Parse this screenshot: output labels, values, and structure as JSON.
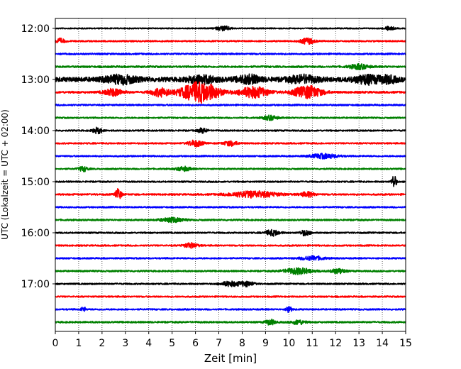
{
  "chart_data": {
    "type": "line",
    "title": "",
    "xlabel": "Zeit  [min]",
    "ylabel": "UTC (Lokalzeit = UTC + 02:00)",
    "xlim": [
      0,
      15
    ],
    "x_ticks": [
      "0",
      "1",
      "2",
      "3",
      "4",
      "5",
      "6",
      "7",
      "8",
      "9",
      "10",
      "11",
      "12",
      "13",
      "14",
      "15"
    ],
    "y_tick_labels": [
      "12:00",
      "13:00",
      "14:00",
      "15:00",
      "16:00",
      "17:00"
    ],
    "grid": "vertical dotted",
    "legend": "none",
    "trace_interval_minutes": 15,
    "first_trace": "12:00",
    "colors": [
      "#000000",
      "#ff0000",
      "#0000ff",
      "#008000"
    ],
    "series": [
      {
        "start": "12:00",
        "color": "#000000",
        "level": 0.35,
        "bursts": [
          [
            7.2,
            0.3,
            1.4
          ],
          [
            14.3,
            0.2,
            1.2
          ]
        ]
      },
      {
        "start": "12:15",
        "color": "#ff0000",
        "level": 0.45,
        "bursts": [
          [
            0.2,
            0.2,
            1.5
          ],
          [
            10.8,
            0.3,
            1.8
          ]
        ]
      },
      {
        "start": "12:30",
        "color": "#0000ff",
        "level": 0.5,
        "bursts": []
      },
      {
        "start": "12:45",
        "color": "#008000",
        "level": 0.55,
        "bursts": [
          [
            13.0,
            0.4,
            1.5
          ]
        ]
      },
      {
        "start": "13:00",
        "color": "#000000",
        "level": 1.4,
        "bursts": [
          [
            2.8,
            0.7,
            2.2
          ],
          [
            6.3,
            0.6,
            2.0
          ],
          [
            8.3,
            0.5,
            2.2
          ],
          [
            10.6,
            0.6,
            2.1
          ],
          [
            13.3,
            0.5,
            2.3
          ],
          [
            14.2,
            0.4,
            2.0
          ]
        ]
      },
      {
        "start": "13:15",
        "color": "#ff0000",
        "level": 0.6,
        "bursts": [
          [
            2.5,
            0.4,
            2.2
          ],
          [
            4.5,
            0.4,
            2.5
          ],
          [
            6.2,
            0.8,
            6.5
          ],
          [
            8.5,
            0.6,
            3.5
          ],
          [
            10.8,
            0.6,
            4.0
          ]
        ]
      },
      {
        "start": "13:30",
        "color": "#0000ff",
        "level": 0.5,
        "bursts": []
      },
      {
        "start": "13:45",
        "color": "#008000",
        "level": 0.45,
        "bursts": [
          [
            9.2,
            0.3,
            1.4
          ]
        ]
      },
      {
        "start": "14:00",
        "color": "#000000",
        "level": 0.45,
        "bursts": [
          [
            1.8,
            0.2,
            1.8
          ],
          [
            6.3,
            0.2,
            1.5
          ]
        ]
      },
      {
        "start": "14:15",
        "color": "#ff0000",
        "level": 0.45,
        "bursts": [
          [
            6.0,
            0.3,
            2.0
          ],
          [
            7.5,
            0.3,
            1.5
          ]
        ]
      },
      {
        "start": "14:30",
        "color": "#0000ff",
        "level": 0.45,
        "bursts": [
          [
            11.5,
            0.6,
            1.4
          ]
        ]
      },
      {
        "start": "14:45",
        "color": "#008000",
        "level": 0.45,
        "bursts": [
          [
            1.2,
            0.2,
            1.5
          ],
          [
            5.5,
            0.3,
            1.3
          ]
        ]
      },
      {
        "start": "15:00",
        "color": "#000000",
        "level": 0.45,
        "bursts": [
          [
            14.5,
            0.1,
            4.0
          ]
        ]
      },
      {
        "start": "15:15",
        "color": "#ff0000",
        "level": 0.5,
        "bursts": [
          [
            2.7,
            0.12,
            4.0
          ],
          [
            8.5,
            1.0,
            2.0
          ],
          [
            10.8,
            0.3,
            1.5
          ]
        ]
      },
      {
        "start": "15:30",
        "color": "#0000ff",
        "level": 0.45,
        "bursts": []
      },
      {
        "start": "15:45",
        "color": "#008000",
        "level": 0.5,
        "bursts": [
          [
            5.0,
            0.5,
            1.3
          ]
        ]
      },
      {
        "start": "16:00",
        "color": "#000000",
        "level": 0.45,
        "bursts": [
          [
            9.3,
            0.3,
            1.8
          ],
          [
            10.7,
            0.2,
            1.8
          ]
        ]
      },
      {
        "start": "16:15",
        "color": "#ff0000",
        "level": 0.45,
        "bursts": [
          [
            5.8,
            0.3,
            1.5
          ]
        ]
      },
      {
        "start": "16:30",
        "color": "#0000ff",
        "level": 0.45,
        "bursts": [
          [
            11.0,
            0.5,
            1.3
          ]
        ]
      },
      {
        "start": "16:45",
        "color": "#008000",
        "level": 0.5,
        "bursts": [
          [
            10.4,
            0.6,
            1.8
          ],
          [
            12.1,
            0.3,
            1.5
          ]
        ]
      },
      {
        "start": "17:00",
        "color": "#000000",
        "level": 0.45,
        "bursts": [
          [
            7.5,
            0.4,
            1.5
          ],
          [
            8.2,
            0.3,
            1.5
          ]
        ]
      },
      {
        "start": "17:15",
        "color": "#ff0000",
        "level": 0.45,
        "bursts": []
      },
      {
        "start": "17:30",
        "color": "#0000ff",
        "level": 0.45,
        "bursts": [
          [
            10.0,
            0.1,
            2.8
          ],
          [
            1.2,
            0.1,
            1.5
          ]
        ]
      },
      {
        "start": "17:45",
        "color": "#008000",
        "level": 0.5,
        "bursts": [
          [
            9.2,
            0.2,
            1.8
          ],
          [
            10.4,
            0.3,
            1.3
          ]
        ]
      }
    ]
  }
}
